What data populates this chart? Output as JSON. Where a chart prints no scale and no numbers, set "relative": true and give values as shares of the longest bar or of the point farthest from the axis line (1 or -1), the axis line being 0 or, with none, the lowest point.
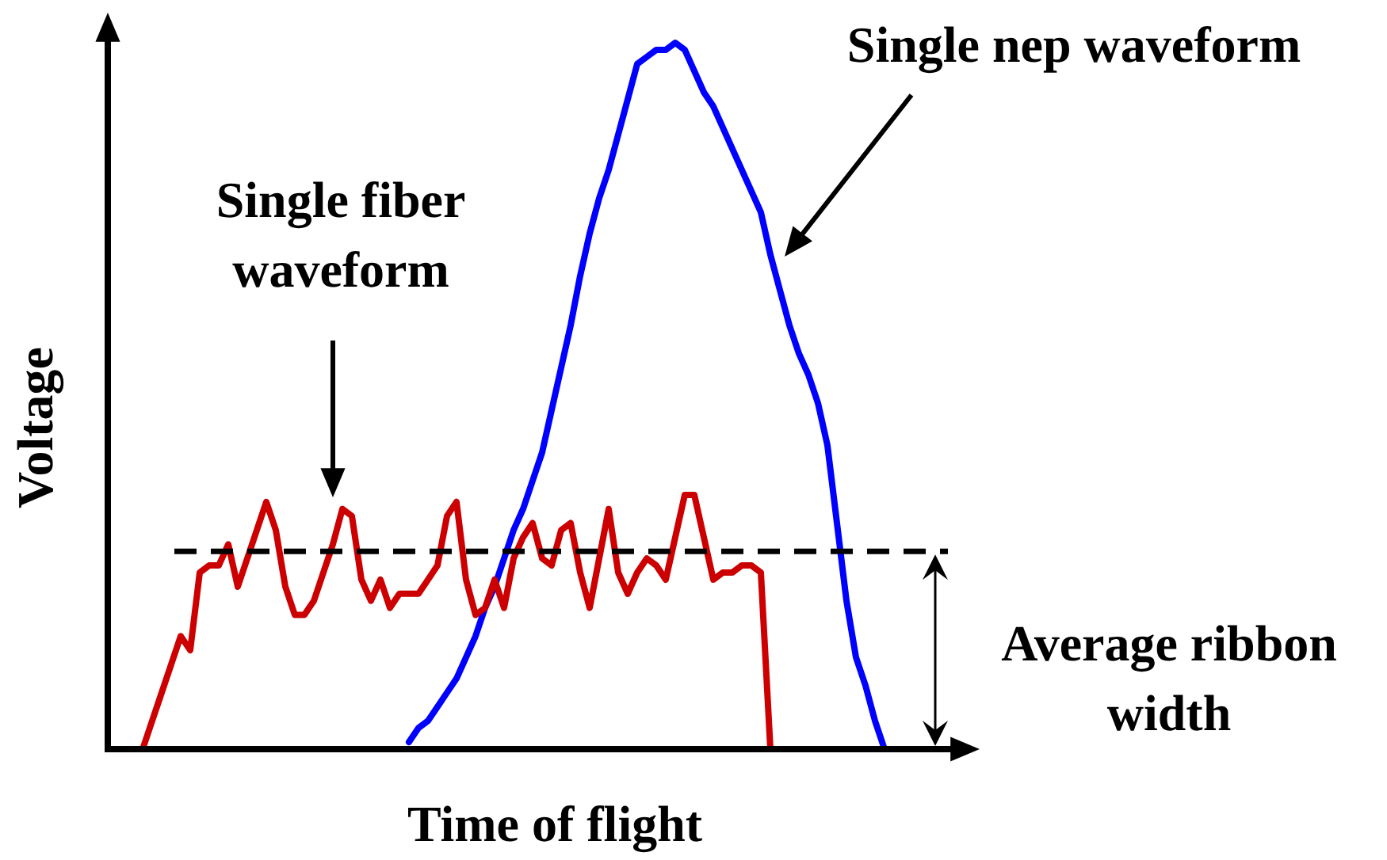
{
  "chart_data": {
    "type": "line",
    "relative": true,
    "xlabel": "Time of flight",
    "ylabel": "Voltage",
    "legend": false,
    "marker": "none",
    "line_style": "solid",
    "tick_labels": false,
    "categories": [
      null,
      null,
      null,
      null,
      null,
      null,
      null,
      null,
      null,
      null,
      null,
      null,
      null,
      null,
      null,
      null,
      null,
      null,
      null,
      null,
      null,
      null,
      null,
      null,
      null,
      null,
      null,
      null,
      null,
      null,
      null,
      null,
      null,
      null,
      null,
      null,
      null,
      null,
      null,
      null,
      null,
      null,
      null,
      null,
      null,
      null,
      null,
      null,
      null,
      null,
      null,
      null,
      null,
      null,
      null,
      null,
      null,
      null,
      null,
      null,
      null,
      null,
      null,
      null,
      null,
      null,
      null,
      null,
      null,
      null,
      null,
      null,
      null,
      null,
      null,
      null,
      null,
      null,
      null
    ],
    "series": [
      {
        "name": "Single fiber waveform",
        "color": "#cc0000",
        "values": [
          0,
          0.04,
          0.08,
          0.12,
          0.16,
          0.14,
          0.25,
          0.26,
          0.26,
          0.29,
          0.23,
          0.27,
          0.31,
          0.35,
          0.31,
          0.23,
          0.19,
          0.19,
          0.21,
          0.25,
          0.29,
          0.34,
          0.33,
          0.24,
          0.21,
          0.24,
          0.2,
          0.22,
          0.22,
          0.22,
          0.24,
          0.26,
          0.33,
          0.35,
          0.24,
          0.19,
          0.2,
          0.24,
          0.2,
          0.27,
          0.3,
          0.32,
          0.27,
          0.26,
          0.31,
          0.32,
          0.25,
          0.2,
          0.27,
          0.34,
          0.25,
          0.22,
          0.25,
          0.27,
          0.26,
          0.24,
          0.3,
          0.36,
          0.36,
          0.3,
          0.24,
          0.25,
          0.25,
          0.26,
          0.26,
          0.25,
          0,
          null,
          null,
          null,
          null,
          null,
          null,
          null,
          null,
          null,
          null,
          null,
          null
        ]
      },
      {
        "name": "Single nep waveform",
        "color": "#0000ff",
        "values": [
          null,
          null,
          null,
          null,
          null,
          null,
          null,
          null,
          null,
          null,
          null,
          null,
          null,
          null,
          null,
          null,
          null,
          null,
          null,
          null,
          null,
          null,
          null,
          null,
          null,
          null,
          null,
          null,
          0.01,
          0.03,
          0.04,
          0.06,
          0.08,
          0.1,
          0.13,
          0.16,
          0.2,
          0.23,
          0.27,
          0.31,
          0.34,
          0.38,
          0.42,
          0.48,
          0.54,
          0.6,
          0.67,
          0.73,
          0.78,
          0.82,
          0.87,
          0.92,
          0.97,
          0.98,
          0.99,
          0.99,
          1,
          0.99,
          0.96,
          0.93,
          0.91,
          0.88,
          0.85,
          0.82,
          0.79,
          0.76,
          0.7,
          0.65,
          0.6,
          0.56,
          0.53,
          0.49,
          0.43,
          0.32,
          0.21,
          0.13,
          0.09,
          0.04,
          0
        ]
      }
    ],
    "ref_lines": [
      {
        "axis": "y",
        "value": 0.28,
        "label": "Average ribbon width",
        "color": "#000000",
        "line_style": "dashed"
      }
    ]
  }
}
